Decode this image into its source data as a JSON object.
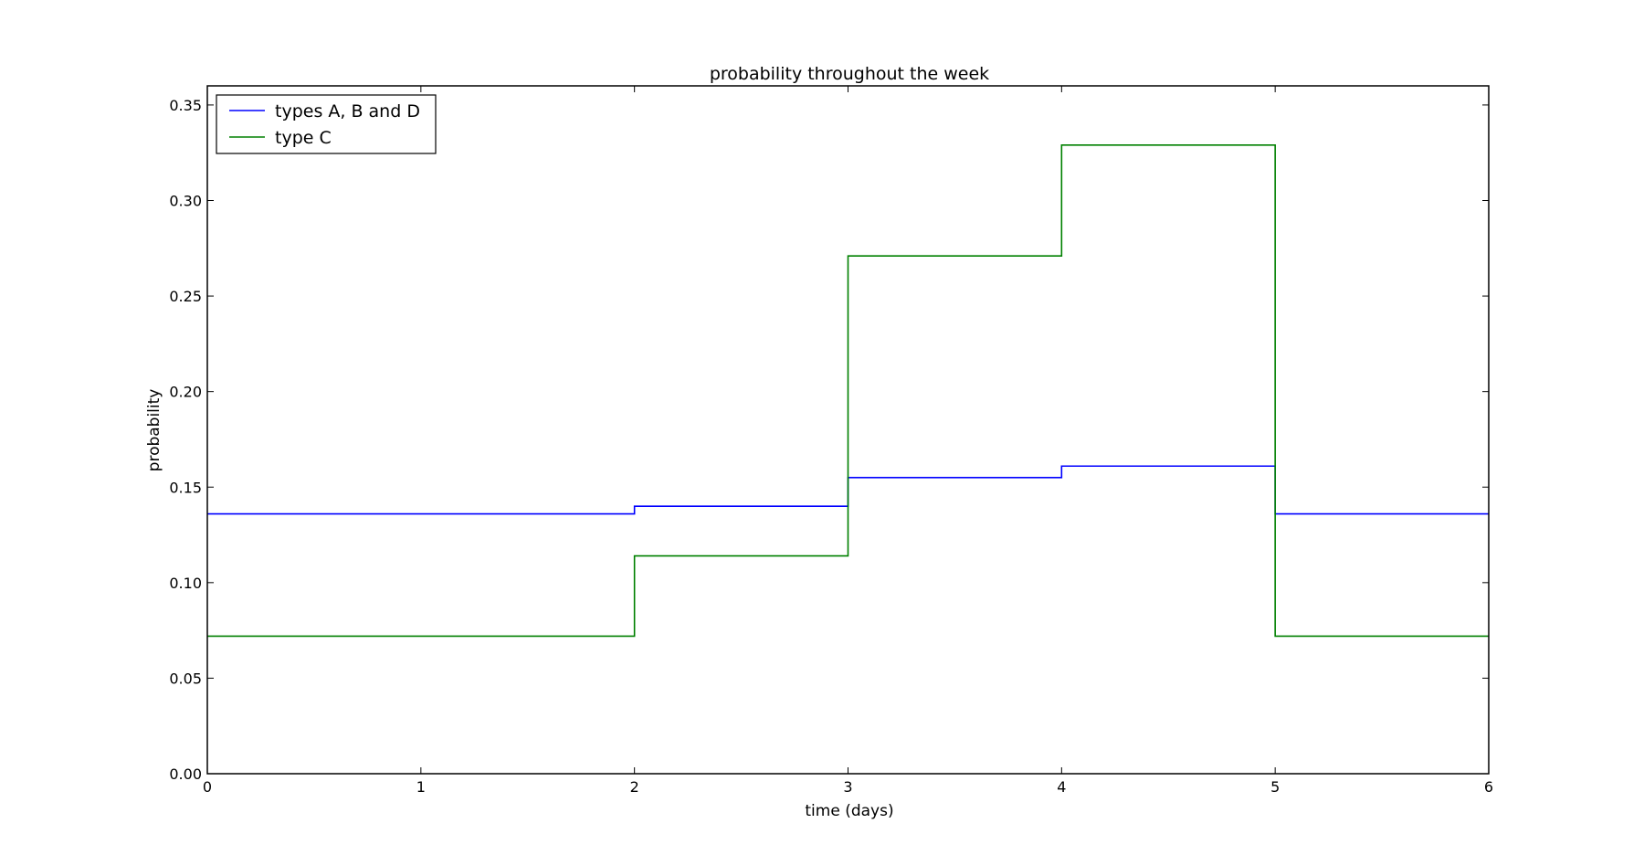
{
  "chart_data": {
    "type": "line",
    "step": "post",
    "title": "probability throughout the week",
    "xlabel": "time (days)",
    "ylabel": "probability",
    "xlim": [
      0,
      6
    ],
    "ylim": [
      0,
      0.36
    ],
    "x_ticks": [
      0,
      1,
      2,
      3,
      4,
      5,
      6
    ],
    "x_tick_labels": [
      "0",
      "1",
      "2",
      "3",
      "4",
      "5",
      "6"
    ],
    "y_ticks": [
      0.0,
      0.05,
      0.1,
      0.15,
      0.2,
      0.25,
      0.3,
      0.35
    ],
    "y_tick_labels": [
      "0.00",
      "0.05",
      "0.10",
      "0.15",
      "0.20",
      "0.25",
      "0.30",
      "0.35"
    ],
    "grid": false,
    "legend_position": "top-left",
    "series": [
      {
        "name": "types A, B and D",
        "color": "#0000ff",
        "x": [
          0,
          2,
          3,
          4,
          5,
          6
        ],
        "y": [
          0.136,
          0.14,
          0.155,
          0.161,
          0.136,
          0.136
        ]
      },
      {
        "name": "type C",
        "color": "#008000",
        "x": [
          0,
          2,
          3,
          4,
          5,
          6
        ],
        "y": [
          0.072,
          0.114,
          0.271,
          0.329,
          0.072,
          0.072
        ]
      }
    ]
  }
}
